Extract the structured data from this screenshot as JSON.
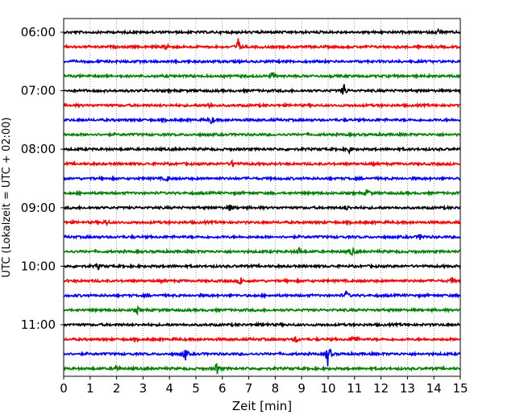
{
  "chart_data": {
    "type": "line",
    "title": "",
    "xlabel": "Zeit  [min]",
    "ylabel": "UTC (Lokalzeit = UTC + 02:00)",
    "xlim": [
      0,
      15
    ],
    "x_ticks": [
      0,
      1,
      2,
      3,
      4,
      5,
      6,
      7,
      8,
      9,
      10,
      11,
      12,
      13,
      14,
      15
    ],
    "x_tick_labels": [
      "0",
      "1",
      "2",
      "3",
      "4",
      "5",
      "6",
      "7",
      "8",
      "9",
      "10",
      "11",
      "12",
      "13",
      "14",
      "15"
    ],
    "y_tick_labels": [
      "06:00",
      "07:00",
      "08:00",
      "09:00",
      "10:00",
      "11:00"
    ],
    "grid": "vertical dotted",
    "legend": "none",
    "trace_interval_min": 15,
    "trace_colors": [
      "#000000",
      "#ff0000",
      "#0000ff",
      "#008000"
    ],
    "traces": [
      {
        "start": "06:00",
        "color": "#000000",
        "events": [
          {
            "t": 14.2,
            "amp": 0.4
          }
        ]
      },
      {
        "start": "06:15",
        "color": "#ff0000",
        "events": [
          {
            "t": 3.9,
            "amp": 0.35
          },
          {
            "t": 6.6,
            "amp": 0.8
          }
        ]
      },
      {
        "start": "06:30",
        "color": "#0000ff",
        "events": []
      },
      {
        "start": "06:45",
        "color": "#008000",
        "events": [
          {
            "t": 7.9,
            "amp": 0.3
          }
        ]
      },
      {
        "start": "07:00",
        "color": "#000000",
        "events": [
          {
            "t": 10.6,
            "amp": 0.7
          }
        ]
      },
      {
        "start": "07:15",
        "color": "#ff0000",
        "events": [
          {
            "t": 5.5,
            "amp": 0.3
          }
        ]
      },
      {
        "start": "07:30",
        "color": "#0000ff",
        "events": [
          {
            "t": 5.6,
            "amp": 0.4
          }
        ]
      },
      {
        "start": "07:45",
        "color": "#008000",
        "events": []
      },
      {
        "start": "08:00",
        "color": "#000000",
        "events": [
          {
            "t": 10.8,
            "amp": 0.35
          }
        ]
      },
      {
        "start": "08:15",
        "color": "#ff0000",
        "events": [
          {
            "t": 6.4,
            "amp": 0.35
          }
        ]
      },
      {
        "start": "08:30",
        "color": "#0000ff",
        "events": [
          {
            "t": 3.9,
            "amp": 0.3
          }
        ]
      },
      {
        "start": "08:45",
        "color": "#008000",
        "events": [
          {
            "t": 11.5,
            "amp": 0.45
          }
        ]
      },
      {
        "start": "09:00",
        "color": "#000000",
        "events": [
          {
            "t": 6.3,
            "amp": 0.35
          },
          {
            "t": 10.7,
            "amp": 0.25
          }
        ]
      },
      {
        "start": "09:15",
        "color": "#ff0000",
        "events": [
          {
            "t": 1.6,
            "amp": 0.3
          }
        ]
      },
      {
        "start": "09:30",
        "color": "#0000ff",
        "events": [
          {
            "t": 13.5,
            "amp": 0.3
          }
        ]
      },
      {
        "start": "09:45",
        "color": "#008000",
        "events": [
          {
            "t": 8.9,
            "amp": 0.35
          },
          {
            "t": 10.9,
            "amp": 0.45
          }
        ]
      },
      {
        "start": "10:00",
        "color": "#000000",
        "events": [
          {
            "t": 1.3,
            "amp": 0.25
          }
        ]
      },
      {
        "start": "10:15",
        "color": "#ff0000",
        "events": [
          {
            "t": 6.7,
            "amp": 0.4
          },
          {
            "t": 14.7,
            "amp": 0.3
          }
        ]
      },
      {
        "start": "10:30",
        "color": "#0000ff",
        "events": [
          {
            "t": 10.7,
            "amp": 0.35
          }
        ]
      },
      {
        "start": "10:45",
        "color": "#008000",
        "events": [
          {
            "t": 2.8,
            "amp": 0.3
          }
        ]
      },
      {
        "start": "11:00",
        "color": "#000000",
        "events": [
          {
            "t": 7.6,
            "amp": 0.3
          }
        ]
      },
      {
        "start": "11:15",
        "color": "#ff0000",
        "events": [
          {
            "t": 8.8,
            "amp": 0.35
          },
          {
            "t": 11.0,
            "amp": 0.55
          }
        ]
      },
      {
        "start": "11:30",
        "color": "#0000ff",
        "events": [
          {
            "t": 4.6,
            "amp": 0.6
          },
          {
            "t": 10.0,
            "amp": 1.4
          }
        ]
      },
      {
        "start": "11:45",
        "color": "#008000",
        "events": [
          {
            "t": 2.0,
            "amp": 0.35
          },
          {
            "t": 5.8,
            "amp": 0.6
          }
        ]
      }
    ]
  }
}
